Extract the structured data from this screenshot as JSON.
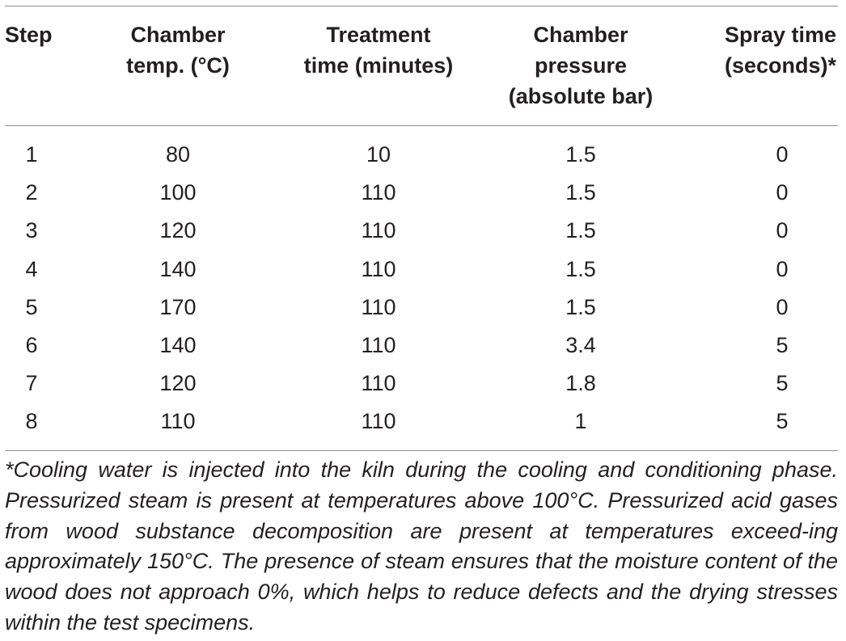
{
  "table": {
    "headers": [
      "Step",
      "Chamber\ntemp. (°C)",
      "Treatment\ntime (minutes)",
      "Chamber\npressure\n(absolute bar)",
      "Spray time\n(seconds)*"
    ],
    "rows": [
      [
        "1",
        "80",
        "10",
        "1.5",
        "0"
      ],
      [
        "2",
        "100",
        "110",
        "1.5",
        "0"
      ],
      [
        "3",
        "120",
        "110",
        "1.5",
        "0"
      ],
      [
        "4",
        "140",
        "110",
        "1.5",
        "0"
      ],
      [
        "5",
        "170",
        "110",
        "1.5",
        "0"
      ],
      [
        "6",
        "140",
        "110",
        "3.4",
        "5"
      ],
      [
        "7",
        "120",
        "110",
        "1.8",
        "5"
      ],
      [
        "8",
        "110",
        "110",
        "1",
        "5"
      ]
    ]
  },
  "footnote": "*Cooling water is injected into the kiln during the cooling and conditioning phase. Pressurized steam is present at temperatures above 100°C. Pressurized acid gases from wood substance decomposition are present at temperatures exceed-ing approximately 150°C. The presence of steam ensures that the moisture content of the wood does not approach 0%, which helps to reduce defects and the drying stresses within the test specimens."
}
